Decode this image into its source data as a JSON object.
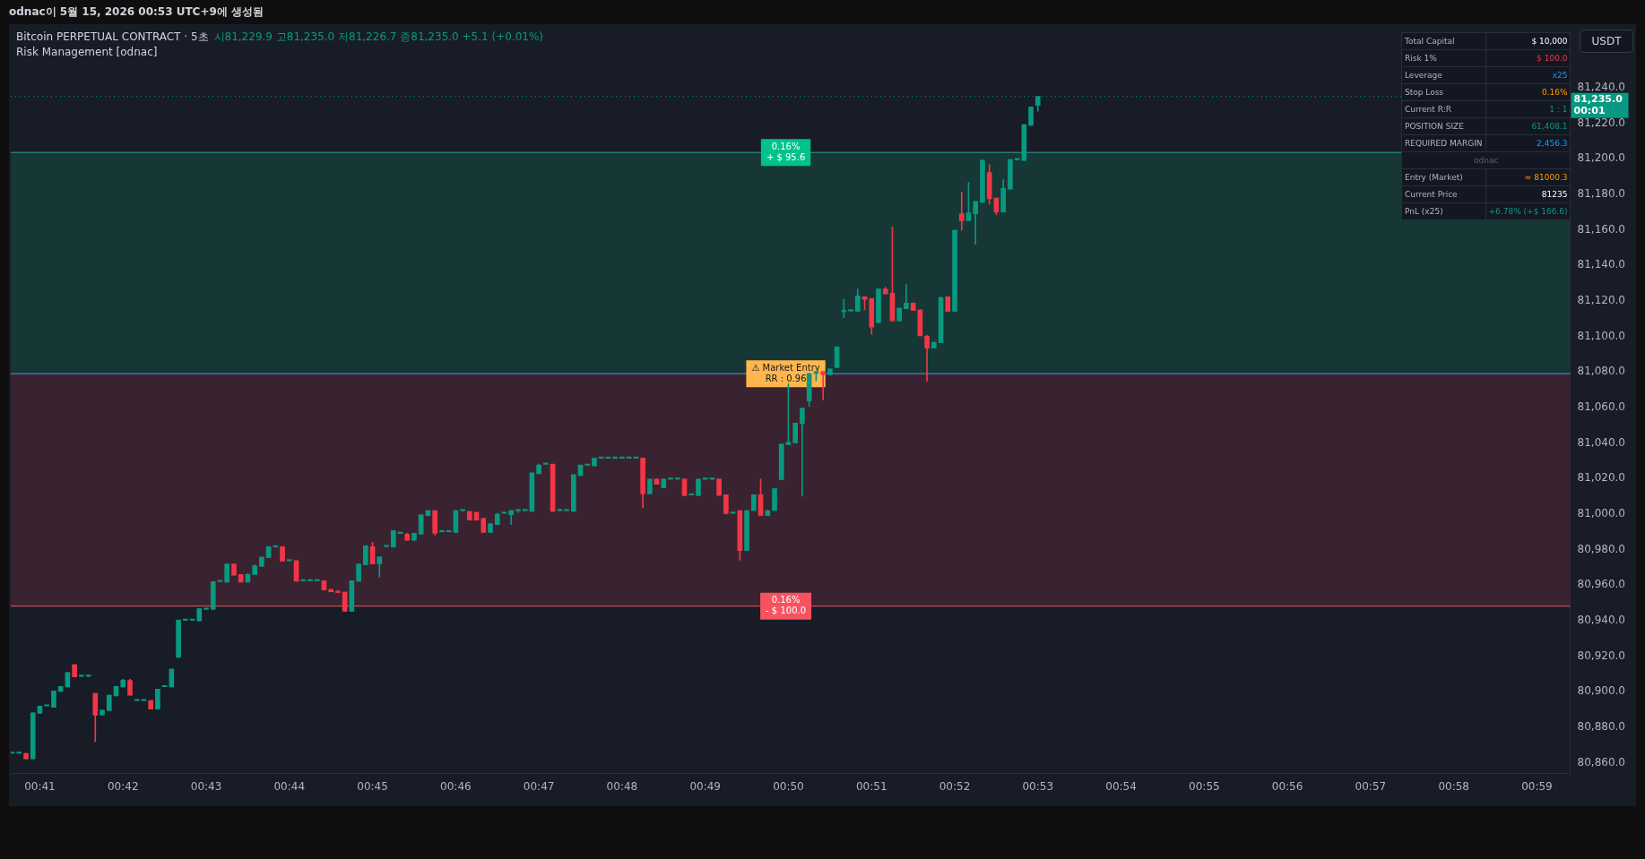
{
  "chart_data": {
    "type": "candlestick",
    "title": "Bitcoin PERPETUAL CONTRACT · 5초",
    "subtitle": "시81,229.9 고81,235.0 저81,226.7 종81,235.0 +5.1 (+0.01%)",
    "x": [
      0.67778,
      0.67917,
      0.68056,
      0.68194,
      0.68333,
      0.68472,
      0.68611,
      0.6875,
      0.68889,
      0.69028,
      0.69167,
      0.69306,
      0.69444,
      0.69583,
      0.69722,
      0.69861,
      0.7,
      0.70139,
      0.70278,
      0.70417,
      0.70556,
      0.70694,
      0.70833,
      0.70972,
      0.71111,
      0.7125,
      0.71389,
      0.71528,
      0.71667,
      0.71806,
      0.71944,
      0.72083,
      0.72222,
      0.72361,
      0.725,
      0.72639,
      0.72778,
      0.72917,
      0.73056,
      0.73194,
      0.73333,
      0.73472,
      0.73611,
      0.7375,
      0.73889,
      0.74028,
      0.74167,
      0.74306,
      0.74444,
      0.74583,
      0.74722,
      0.74861,
      0.75,
      0.75139,
      0.75278,
      0.75417,
      0.75556,
      0.75694,
      0.75833,
      0.75972,
      0.76111,
      0.7625,
      0.76389,
      0.76528,
      0.76667,
      0.76806,
      0.76944,
      0.77083,
      0.77222,
      0.77361,
      0.775,
      0.77639,
      0.77778,
      0.77917,
      0.78056,
      0.78194,
      0.78333,
      0.78472,
      0.78611,
      0.7875,
      0.78889,
      0.79028,
      0.79167,
      0.79306,
      0.79444,
      0.79583,
      0.79722,
      0.79861,
      0.8,
      0.80139,
      0.80278,
      0.80417,
      0.80556,
      0.80694,
      0.80833,
      0.80972,
      0.81111,
      0.8125,
      0.81389,
      0.81528,
      0.81667,
      0.81806,
      0.81944,
      0.82083,
      0.82222,
      0.82361,
      0.825,
      0.82639,
      0.82778,
      0.82917,
      0.83056,
      0.83194,
      0.83333,
      0.83472,
      0.83611,
      0.8375,
      0.83889,
      0.84028,
      0.84167,
      0.84306,
      0.84444,
      0.84583,
      0.84722,
      0.84861,
      0.85,
      0.85139,
      0.85278,
      0.85417,
      0.85556,
      0.85694,
      0.85833,
      0.85972,
      0.86111,
      0.8625,
      0.86389,
      0.86528,
      0.86667,
      0.86806,
      0.86944,
      0.87083,
      0.87222,
      0.87361,
      0.875,
      0.87639,
      0.87778,
      0.87917,
      0.88056,
      0.88194,
      0.88333
    ],
    "ohlc": [
      [
        80865.4,
        80865.4,
        80865.4,
        80865.4
      ],
      [
        80865.4,
        80865.4,
        80865.4,
        80865.4
      ],
      [
        80865.4,
        80865.4,
        80862.3,
        80862.3
      ],
      [
        80862.3,
        80888.2,
        80862.3,
        80888.2
      ],
      [
        80887.9,
        80892,
        80887.9,
        80892
      ],
      [
        80892,
        80892,
        80892,
        80892
      ],
      [
        80891.3,
        80900.5,
        80891.3,
        80900.5
      ],
      [
        80900.2,
        80903,
        80900.2,
        80903
      ],
      [
        80902.7,
        80910.9,
        80902.7,
        80910.9
      ],
      [
        80915.3,
        80915.3,
        80908.4,
        80908.4
      ],
      [
        80908.7,
        80908.7,
        80908.7,
        80908.7
      ],
      [
        80908.7,
        80908.7,
        80908.7,
        80908.7
      ],
      [
        80899.1,
        80899.1,
        80872,
        80886.8
      ],
      [
        80887,
        80889.7,
        80887,
        80889.7
      ],
      [
        80889.4,
        80898.1,
        80889.4,
        80898.1
      ],
      [
        80897.7,
        80903,
        80897.7,
        80903
      ],
      [
        80902.7,
        80907.1,
        80902.7,
        80906.6
      ],
      [
        80906.4,
        80907.1,
        80898.1,
        80898.1
      ],
      [
        80895,
        80895,
        80895,
        80895
      ],
      [
        80895,
        80895,
        80895,
        80895
      ],
      [
        80895.1,
        80895.1,
        80890.2,
        80890.2
      ],
      [
        80890.2,
        80901.5,
        80890.2,
        80901.5
      ],
      [
        80902.8,
        80902.8,
        80902.8,
        80902.8
      ],
      [
        80902.7,
        80912.8,
        80902.7,
        80912.8
      ],
      [
        80919.4,
        80940.4,
        80919.4,
        80940.4
      ],
      [
        80940.2,
        80940.2,
        80940.2,
        80940.2
      ],
      [
        80940.2,
        80940.2,
        80940.2,
        80940.2
      ],
      [
        80939.9,
        80946.8,
        80939.9,
        80946.8
      ],
      [
        80946.4,
        80946.4,
        80946.4,
        80946.4
      ],
      [
        80946.4,
        80962,
        80946.4,
        80962
      ],
      [
        80962,
        80962,
        80962,
        80962
      ],
      [
        80961.7,
        80971.9,
        80961.7,
        80971.9
      ],
      [
        80971.9,
        80971.9,
        80965.6,
        80965.6
      ],
      [
        80966,
        80966,
        80961.7,
        80961.7
      ],
      [
        80961.7,
        80966.6,
        80961.7,
        80966
      ],
      [
        80966,
        80971.5,
        80966,
        80970.9
      ],
      [
        80970.6,
        80975.8,
        80970.6,
        80975.8
      ],
      [
        80975.5,
        80981.7,
        80975.5,
        80981.7
      ],
      [
        80981.5,
        80981.5,
        80981.5,
        80981.5
      ],
      [
        80981.7,
        80981.7,
        80973.5,
        80973.5
      ],
      [
        80973.7,
        80973.7,
        80973.7,
        80973.7
      ],
      [
        80973.8,
        80973.8,
        80962.2,
        80962.2
      ],
      [
        80962.4,
        80962.4,
        80962.4,
        80962.4
      ],
      [
        80962.4,
        80962.4,
        80962.4,
        80962.4
      ],
      [
        80962.4,
        80962.4,
        80962.4,
        80962.4
      ],
      [
        80962.4,
        80962.4,
        80957.3,
        80957.3
      ],
      [
        80957.6,
        80957.6,
        80956.3,
        80956.3
      ],
      [
        80956.6,
        80957.1,
        80955.8,
        80955.8
      ],
      [
        80956.1,
        80956.1,
        80945.3,
        80945.3
      ],
      [
        80945.3,
        80962.5,
        80945.3,
        80962.5
      ],
      [
        80962.2,
        80971.9,
        80962.2,
        80971.9
      ],
      [
        80971.5,
        80982.2,
        80971.5,
        80982.2
      ],
      [
        80981.7,
        80984.2,
        80971.9,
        80971.9
      ],
      [
        80972,
        80975.9,
        80964.6,
        80975.9
      ],
      [
        80981.7,
        80981.7,
        80981.7,
        80981.7
      ],
      [
        80981.4,
        80990.7,
        80981.4,
        80990.7
      ],
      [
        80989.1,
        80989.1,
        80989.1,
        80989.1
      ],
      [
        80988.7,
        80989.2,
        80985.3,
        80985.3
      ],
      [
        80985.3,
        80989.2,
        80985.3,
        80989.2
      ],
      [
        80988.7,
        80999.6,
        80988.7,
        80999.6
      ],
      [
        80999.1,
        81002,
        80999.1,
        81002
      ],
      [
        81002,
        81002,
        80988.2,
        80989.2
      ],
      [
        80990,
        80990,
        80990,
        80990
      ],
      [
        80990,
        80990,
        80990,
        80990
      ],
      [
        80989.7,
        81002,
        80989.7,
        81002
      ],
      [
        81001.9,
        81001.9,
        81001.9,
        81001.9
      ],
      [
        81001.5,
        81001.5,
        80996.6,
        80996.6
      ],
      [
        81001,
        81001,
        80996.6,
        80996.6
      ],
      [
        80997.6,
        80997.6,
        80989.7,
        80989.7
      ],
      [
        80989.7,
        80994.6,
        80989.7,
        80994.6
      ],
      [
        80994.1,
        81000.5,
        80994.1,
        80999.9
      ],
      [
        81000.4,
        81000.4,
        81000.4,
        81000.4
      ],
      [
        80999.6,
        81002,
        80994.1,
        81002
      ],
      [
        81001.9,
        81001.9,
        81000.7,
        81001.9
      ],
      [
        81001.9,
        81001.9,
        81001.9,
        81001.9
      ],
      [
        81001.5,
        81023.2,
        81001.5,
        81023.2
      ],
      [
        81022.7,
        81028.1,
        81022.7,
        81027.6
      ],
      [
        81028,
        81028,
        81028,
        81028
      ],
      [
        81028.1,
        81028.1,
        81001.5,
        81001.5
      ],
      [
        81001.9,
        81001.9,
        81001.9,
        81001.9
      ],
      [
        81001.9,
        81001.9,
        81001.9,
        81001.9
      ],
      [
        81001.5,
        81022.2,
        81001.5,
        81022.2
      ],
      [
        81021.7,
        81027.6,
        81021.7,
        81027.6
      ],
      [
        81027.4,
        81027.4,
        81027.4,
        81027.4
      ],
      [
        81027.1,
        81031.5,
        81027.1,
        81031.5
      ],
      [
        81031.4,
        81031.4,
        81031.4,
        81031.4
      ],
      [
        81031.4,
        81031.4,
        81031.4,
        81031.4
      ],
      [
        81031.4,
        81031.4,
        81031.4,
        81031.4
      ],
      [
        81031.4,
        81031.4,
        81031.4,
        81031.4
      ],
      [
        81031.4,
        81031.4,
        81031.4,
        81031.4
      ],
      [
        81031.4,
        81031.4,
        81031.4,
        81031.4
      ],
      [
        81031.5,
        81031.5,
        81003.5,
        81011.4
      ],
      [
        81011.4,
        81019.7,
        81011.4,
        81019.7
      ],
      [
        81019.7,
        81019.7,
        81016.8,
        81016.8
      ],
      [
        81014.8,
        81019.7,
        81014.8,
        81019.7
      ],
      [
        81019.6,
        81019.6,
        81019.6,
        81019.6
      ],
      [
        81019.6,
        81019.6,
        81019.6,
        81019.6
      ],
      [
        81019.7,
        81019.7,
        81010.4,
        81010.4
      ],
      [
        81010.7,
        81010.7,
        81010.7,
        81010.7
      ],
      [
        81010.4,
        81019.7,
        81010.4,
        81019.7
      ],
      [
        81019.6,
        81019.6,
        81019.6,
        81019.6
      ],
      [
        81019.6,
        81019.6,
        81019.6,
        81019.6
      ],
      [
        81019.7,
        81019.7,
        81010.5,
        81010.5
      ],
      [
        81010.9,
        81010.9,
        81000.2,
        81000.2
      ],
      [
        81000.4,
        81000.4,
        81000.4,
        81000.4
      ],
      [
        81002,
        81002,
        80974.1,
        80979.5
      ],
      [
        80979.5,
        81002,
        80979.5,
        81002
      ],
      [
        81002,
        81010.9,
        81002,
        81010.9
      ],
      [
        81010.9,
        81019.7,
        80999.2,
        80999.2
      ],
      [
        80999.2,
        81002,
        80999.2,
        81002
      ],
      [
        81002,
        81014.3,
        81002,
        81014.3
      ],
      [
        81019.4,
        81039.4,
        81019.4,
        81039.4
      ],
      [
        81039.1,
        81073.4,
        81039.1,
        81040.4
      ],
      [
        81040.1,
        81051.2,
        81040.1,
        81051.2
      ],
      [
        81050.9,
        81059.6,
        81010.1,
        81059.6
      ],
      [
        81063.7,
        81079.1,
        81060.7,
        81079.1
      ],
      [
        81079.1,
        81080.2,
        81075,
        81080.2
      ],
      [
        81080.2,
        81080.2,
        81064.3,
        81078.4
      ],
      [
        81078.4,
        81081.7,
        81078.4,
        81081.7
      ],
      [
        81082.5,
        81094.1,
        81082.5,
        81094.1
      ],
      [
        81113.9,
        81120.8,
        81110.5,
        81114.4
      ],
      [
        81114.3,
        81114.3,
        81114.3,
        81114.3
      ],
      [
        81114.1,
        81126.7,
        81114.1,
        81122.8
      ],
      [
        81122.3,
        81122.3,
        81115.1,
        81120.8
      ],
      [
        81121.3,
        81121.3,
        81101.3,
        81105.2
      ],
      [
        81107.7,
        81126.7,
        81107.7,
        81126.7
      ],
      [
        81126.7,
        81127.7,
        81123.9,
        81123.9
      ],
      [
        81124.3,
        81161.6,
        81108.7,
        81108.7
      ],
      [
        81108.7,
        81115.9,
        81108.7,
        81115.9
      ],
      [
        81115.6,
        81129.2,
        81115.6,
        81118.8
      ],
      [
        81118.8,
        81118.8,
        81114.6,
        81114.6
      ],
      [
        81114.9,
        81114.9,
        81100.3,
        81100.3
      ],
      [
        81100.1,
        81100.6,
        81074.7,
        81093.4
      ],
      [
        81093.4,
        81096.7,
        81093.4,
        81096.7
      ],
      [
        81096.4,
        81122.3,
        81096.4,
        81121.8
      ],
      [
        81122.3,
        81122.3,
        81114.1,
        81114.1
      ],
      [
        81114.1,
        81159.7,
        81114.1,
        81159.7
      ],
      [
        81169,
        81181.3,
        81159.7,
        81165.1
      ],
      [
        81165.1,
        81186.7,
        81165.1,
        81169.5
      ],
      [
        81169,
        81175.9,
        81151.8,
        81175.9
      ],
      [
        81175.4,
        81199.5,
        81175.4,
        81199
      ],
      [
        81192.2,
        81196.6,
        81174.4,
        81177.4
      ],
      [
        81177.9,
        81177.9,
        81168.5,
        81170
      ],
      [
        81170,
        81188.2,
        81170,
        81183.3
      ],
      [
        81182.8,
        81199.5,
        81182.8,
        81199.5
      ],
      [
        81199.4,
        81199.4,
        81199.4,
        81199.4
      ],
      [
        81199,
        81219.2,
        81199,
        81219.2
      ],
      [
        81218.7,
        81229.1,
        81218.7,
        81229.1
      ],
      [
        81229.9,
        81235,
        81226.7,
        81235
      ]
    ],
    "xlim": [
      0.6775,
      0.99
    ],
    "xticks": [
      {
        "value": 0.68333,
        "label": "00:41"
      },
      {
        "value": 0.7,
        "label": "00:42"
      },
      {
        "value": 0.71667,
        "label": "00:43"
      },
      {
        "value": 0.73333,
        "label": "00:44"
      },
      {
        "value": 0.75,
        "label": "00:45"
      },
      {
        "value": 0.76667,
        "label": "00:46"
      },
      {
        "value": 0.78333,
        "label": "00:47"
      },
      {
        "value": 0.8,
        "label": "00:48"
      },
      {
        "value": 0.81667,
        "label": "00:49"
      },
      {
        "value": 0.83333,
        "label": "00:50"
      },
      {
        "value": 0.85,
        "label": "00:51"
      },
      {
        "value": 0.86667,
        "label": "00:52"
      },
      {
        "value": 0.88333,
        "label": "00:53"
      },
      {
        "value": 0.9,
        "label": "00:54"
      },
      {
        "value": 0.91667,
        "label": "00:55"
      },
      {
        "value": 0.93333,
        "label": "00:56"
      },
      {
        "value": 0.95,
        "label": "00:57"
      },
      {
        "value": 0.96667,
        "label": "00:58"
      },
      {
        "value": 0.98333,
        "label": "00:59"
      }
    ],
    "ylim": [
      80854,
      81268
    ],
    "yticks": [
      {
        "value": 80860,
        "label": "80,860.0"
      },
      {
        "value": 80880,
        "label": "80,880.0"
      },
      {
        "value": 80900,
        "label": "80,900.0"
      },
      {
        "value": 80920,
        "label": "80,920.0"
      },
      {
        "value": 80940,
        "label": "80,940.0"
      },
      {
        "value": 80960,
        "label": "80,960.0"
      },
      {
        "value": 80980,
        "label": "80,980.0"
      },
      {
        "value": 81000,
        "label": "81,000.0"
      },
      {
        "value": 81020,
        "label": "81,020.0"
      },
      {
        "value": 81040,
        "label": "81,040.0"
      },
      {
        "value": 81060,
        "label": "81,060.0"
      },
      {
        "value": 81080,
        "label": "81,080.0"
      },
      {
        "value": 81100,
        "label": "81,100.0"
      },
      {
        "value": 81120,
        "label": "81,120.0"
      },
      {
        "value": 81140,
        "label": "81,140.0"
      },
      {
        "value": 81160,
        "label": "81,160.0"
      },
      {
        "value": 81180,
        "label": "81,180.0"
      },
      {
        "value": 81200,
        "label": "81,200.0"
      },
      {
        "value": 81220,
        "label": "81,220.0"
      },
      {
        "value": 81240,
        "label": "81,240.0"
      }
    ],
    "bands": [
      {
        "axis": "y",
        "from": 81079,
        "to": 81203.5,
        "color": "#163735"
      },
      {
        "axis": "y",
        "from": 80948.2,
        "to": 81079,
        "color": "#3a2330"
      }
    ],
    "ref_lines": [
      {
        "axis": "y",
        "value": 81203.5,
        "color": "#26a69a"
      },
      {
        "axis": "y",
        "value": 81079,
        "color": "#4d9be6"
      },
      {
        "axis": "y",
        "value": 80948.2,
        "color": "#f7525f"
      },
      {
        "axis": "y",
        "value": 81235,
        "label": "81,235.0\n00:01",
        "color": "#089981",
        "line_style": "dotted"
      }
    ],
    "annotations": [
      "odnac이 5월 15, 2026 00:53 UTC+9에 생성됨",
      "Risk Management [odnac]",
      "USDT",
      "Total Capital",
      "$ 10,000",
      "Risk 1%",
      "$ 100.0",
      "Leverage",
      "x25",
      "Stop Loss",
      "0.16%",
      "Current R:R",
      "1 : 1",
      "POSITION SIZE",
      "61,408.1",
      "REQUIRED MARGIN",
      "2,456.3",
      "odnac",
      "Entry (Market)",
      "≈ 81000.3",
      "Current Price",
      "81235",
      "PnL (x25)",
      "+6.78%  (+$ 166.6)",
      {
        "text": "0.16%\n+ $ 95.6",
        "y": 81203.5
      },
      {
        "text": "⚠ Market Entry\nRR : 0.96",
        "y": 81079
      },
      {
        "text": "0.16%\n- $ 100.0",
        "y": 80948.2
      }
    ]
  }
}
